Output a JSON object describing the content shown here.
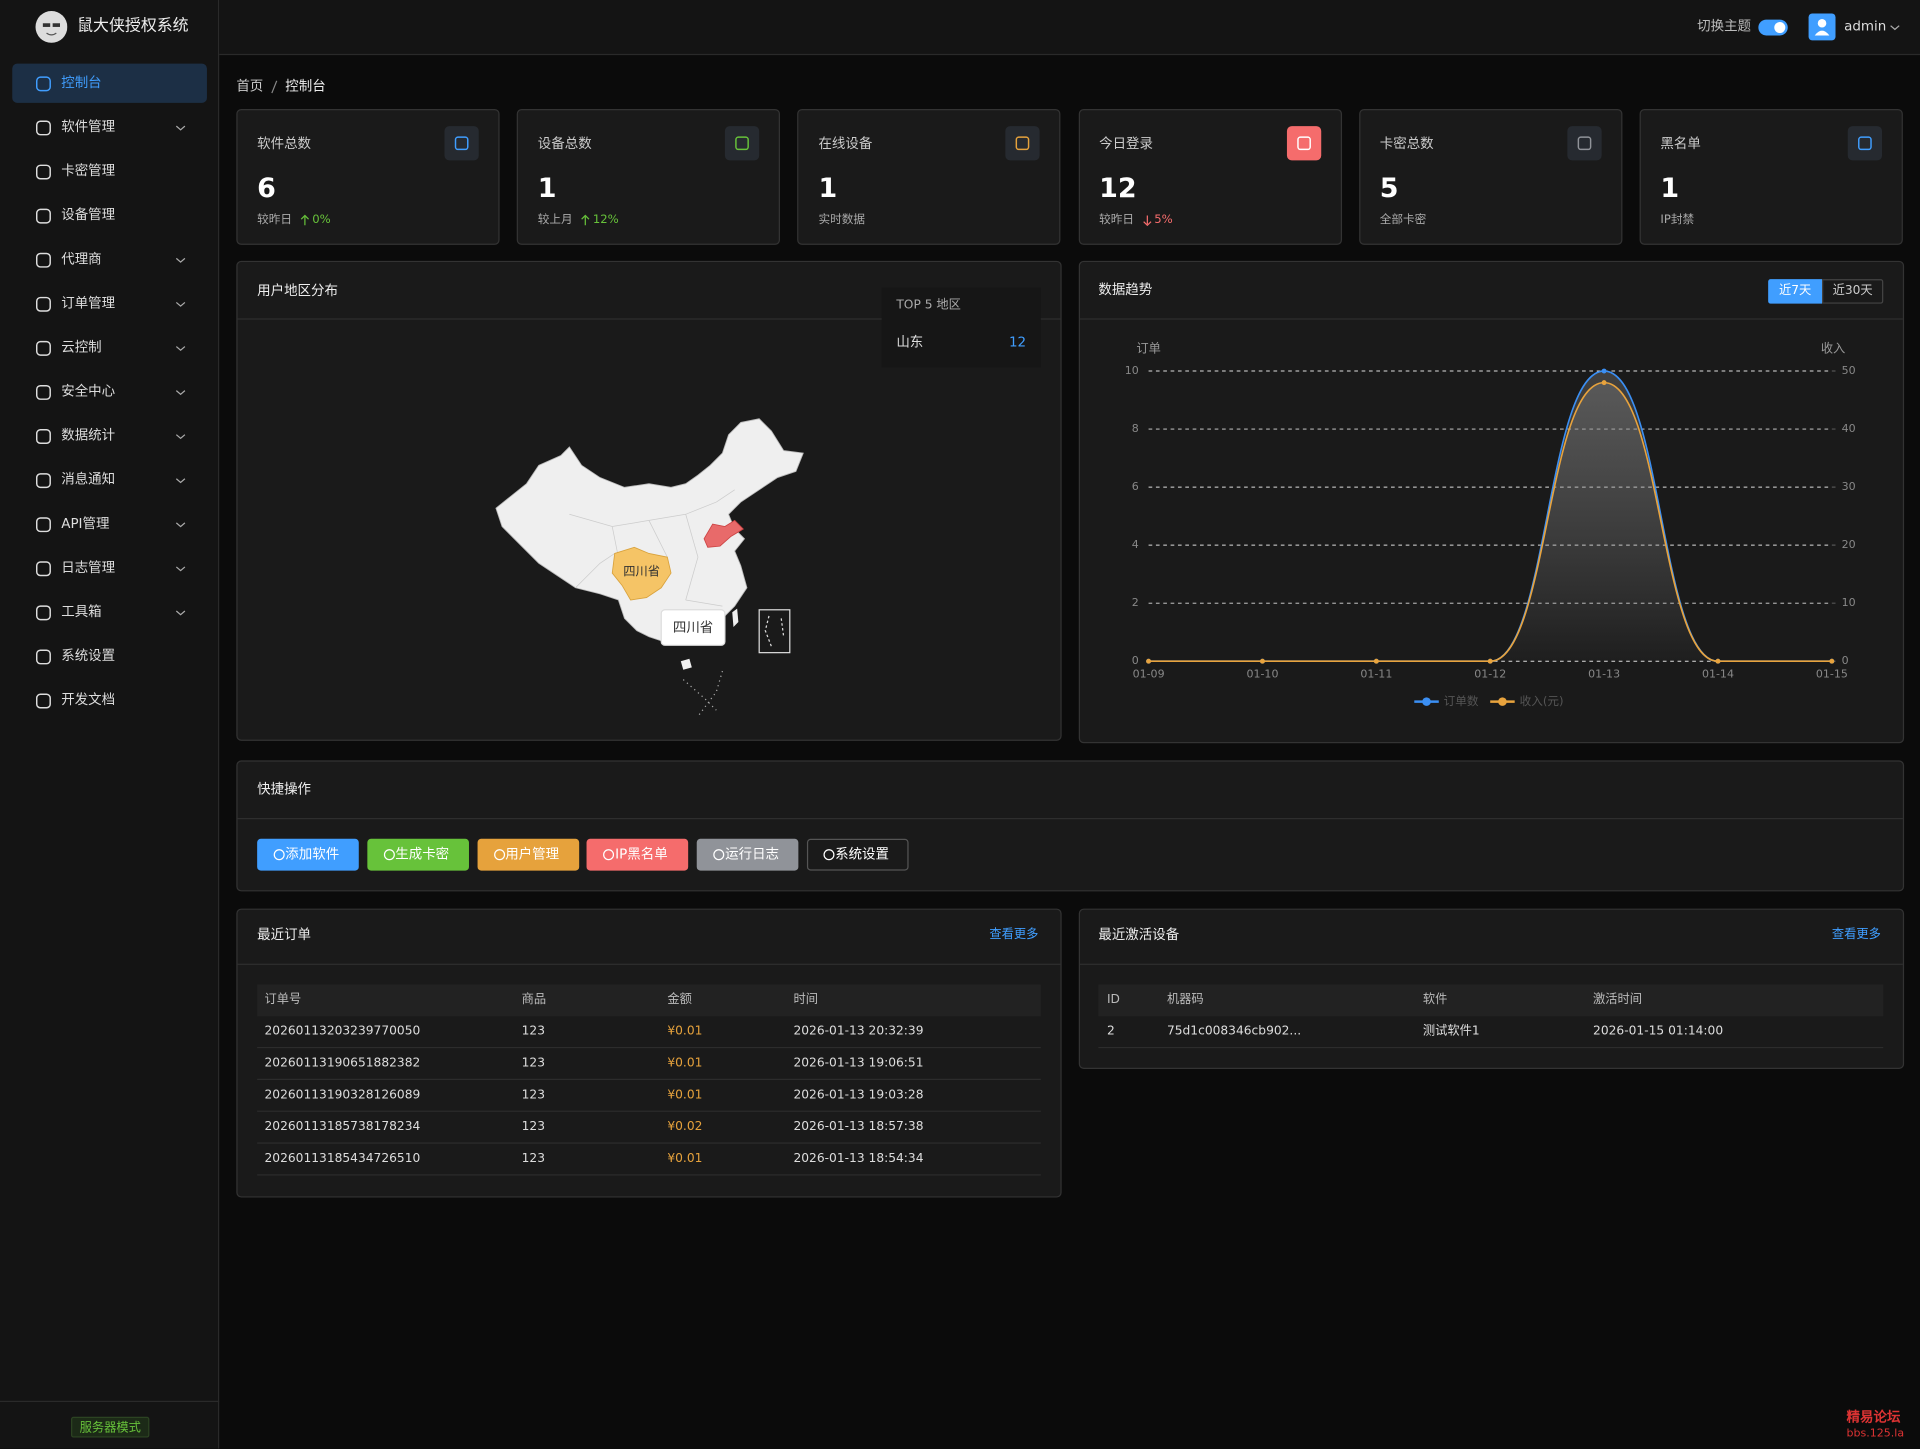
{
  "sidebar": {
    "brand": "鼠大侠授权系统",
    "menu": [
      {
        "label": "控制台",
        "active": true,
        "expandable": false
      },
      {
        "label": "软件管理",
        "active": false,
        "expandable": true
      },
      {
        "label": "卡密管理",
        "active": false,
        "expandable": false
      },
      {
        "label": "设备管理",
        "active": false,
        "expandable": false
      },
      {
        "label": "代理商",
        "active": false,
        "expandable": true
      },
      {
        "label": "订单管理",
        "active": false,
        "expandable": true
      },
      {
        "label": "云控制",
        "active": false,
        "expandable": true
      },
      {
        "label": "安全中心",
        "active": false,
        "expandable": true
      },
      {
        "label": "数据统计",
        "active": false,
        "expandable": true
      },
      {
        "label": "消息通知",
        "active": false,
        "expandable": true
      },
      {
        "label": "API管理",
        "active": false,
        "expandable": true
      },
      {
        "label": "日志管理",
        "active": false,
        "expandable": true
      },
      {
        "label": "工具箱",
        "active": false,
        "expandable": true
      },
      {
        "label": "系统设置",
        "active": false,
        "expandable": false
      },
      {
        "label": "开发文档",
        "active": false,
        "expandable": false
      }
    ],
    "footer": "服务器模式"
  },
  "header": {
    "theme_toggle": "切换主题",
    "user": "admin"
  },
  "breadcrumb": [
    "首页",
    "控制台"
  ],
  "stats": [
    {
      "title": "软件总数",
      "value": 6,
      "note": "较昨日",
      "trend": "up",
      "change": "0%",
      "color": "#409eff"
    },
    {
      "title": "设备总数",
      "value": 1,
      "note": "较上月",
      "trend": "up",
      "change": "12%",
      "color": "#67c23a"
    },
    {
      "title": "在线设备",
      "value": 1,
      "note": "实时数据",
      "color": "#e6a23c"
    },
    {
      "title": "今日登录",
      "value": 12,
      "note": "较昨日",
      "trend": "down",
      "change": "5%",
      "color": "#f56c6c"
    },
    {
      "title": "卡密总数",
      "value": 5,
      "note": "全部卡密",
      "color": "#909399"
    },
    {
      "title": "黑名单",
      "value": 1,
      "note": "IP封禁",
      "color": "#409eff"
    }
  ],
  "map_panel": {
    "title": "用户地区分布",
    "top_title": "TOP 5 地区",
    "top": [
      {
        "region": "山东",
        "value": 12
      }
    ],
    "map_label": "四川省",
    "tooltip": "四川省"
  },
  "trend_panel": {
    "ranges": [
      "近7天",
      "近30天"
    ]
  },
  "chart_data": {
    "type": "line",
    "title": "数据趋势",
    "ylabel": "订单",
    "y2label": "收入",
    "categories": [
      "01-09",
      "01-10",
      "01-11",
      "01-12",
      "01-13",
      "01-14",
      "01-15"
    ],
    "series": [
      {
        "name": "订单数",
        "color": "#3b8ff3",
        "values": [
          0,
          0,
          0,
          0,
          10,
          0,
          0
        ]
      },
      {
        "name": "收入(元)",
        "color": "#e8a33d",
        "axis": "y2",
        "values": [
          0,
          0,
          0,
          0,
          48,
          0,
          0
        ]
      }
    ],
    "ylim": [
      0,
      10
    ],
    "yticks": [
      0,
      2,
      4,
      6,
      8,
      10
    ],
    "y2lim": [
      0,
      50
    ],
    "y2ticks": [
      0,
      10,
      20,
      30,
      40,
      50
    ],
    "grid": true,
    "smooth": true
  },
  "quick_actions": {
    "title": "快捷操作",
    "buttons": [
      {
        "label": "添加软件",
        "color": "#409eff"
      },
      {
        "label": "生成卡密",
        "color": "#67c23a"
      },
      {
        "label": "用户管理",
        "color": "#e6a23c"
      },
      {
        "label": "IP黑名单",
        "color": "#f56c6c"
      },
      {
        "label": "运行日志",
        "color": "#909399"
      },
      {
        "label": "系统设置",
        "color": "#1a1a1a"
      }
    ]
  },
  "orders": {
    "title": "最近订单",
    "more": "查看更多",
    "columns": [
      "订单号",
      "商品",
      "金额",
      "时间"
    ],
    "rows": [
      [
        "20260113203239770050",
        "123",
        "¥0.01",
        "2026-01-13 20:32:39"
      ],
      [
        "20260113190651882382",
        "123",
        "¥0.01",
        "2026-01-13 19:06:51"
      ],
      [
        "20260113190328126089",
        "123",
        "¥0.01",
        "2026-01-13 19:03:28"
      ],
      [
        "20260113185738178234",
        "123",
        "¥0.02",
        "2026-01-13 18:57:38"
      ],
      [
        "20260113185434726510",
        "123",
        "¥0.01",
        "2026-01-13 18:54:34"
      ]
    ]
  },
  "devices": {
    "title": "最近激活设备",
    "more": "查看更多",
    "columns": [
      "ID",
      "机器码",
      "软件",
      "激活时间"
    ],
    "rows": [
      [
        "2",
        "75d1c008346cb902...",
        "测试软件1",
        "2026-01-15 01:14:00"
      ]
    ]
  },
  "watermark": [
    "精易论坛",
    "bbs.125.la"
  ]
}
